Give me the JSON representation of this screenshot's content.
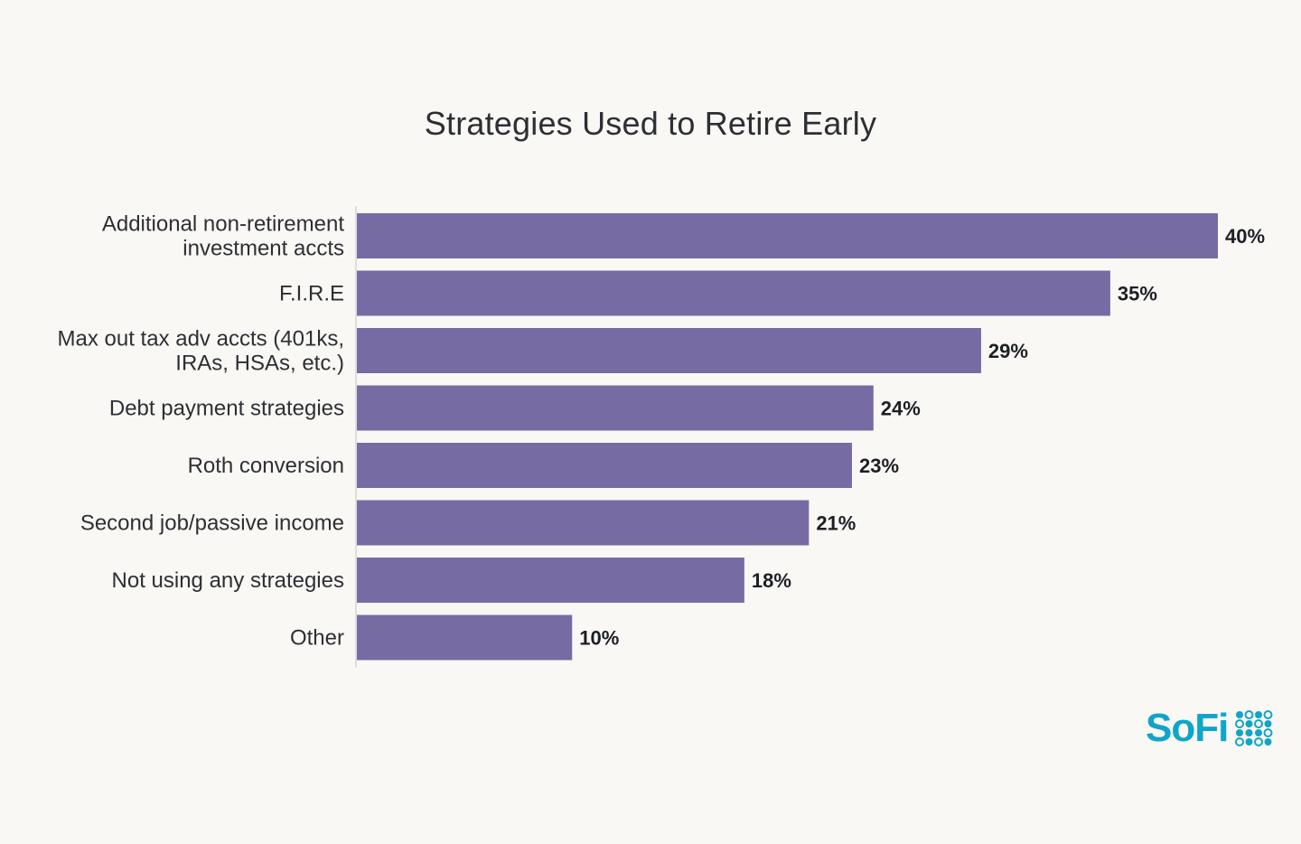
{
  "colors": {
    "bar": "#766ca3",
    "axis": "#d7d6d2",
    "brand": "#0fa5c8"
  },
  "brand": {
    "name": "SoFi",
    "icon": "sofi-dots-icon"
  },
  "chart_data": {
    "type": "bar",
    "orientation": "horizontal",
    "title": "Strategies Used to Retire Early",
    "categories": [
      [
        "Additional non-retirement",
        "investment accts"
      ],
      [
        "F.I.R.E"
      ],
      [
        "Max out tax adv accts (401ks,",
        "IRAs, HSAs, etc.)"
      ],
      [
        "Debt payment strategies"
      ],
      [
        "Roth conversion"
      ],
      [
        "Second job/passive income"
      ],
      [
        "Not using any strategies"
      ],
      [
        "Other"
      ]
    ],
    "values": [
      40,
      35,
      29,
      24,
      23,
      21,
      18,
      10
    ],
    "value_labels": [
      "40%",
      "35%",
      "29%",
      "24%",
      "23%",
      "21%",
      "18%",
      "10%"
    ],
    "xlim": [
      0,
      40
    ],
    "grid": false,
    "legend": "none"
  }
}
